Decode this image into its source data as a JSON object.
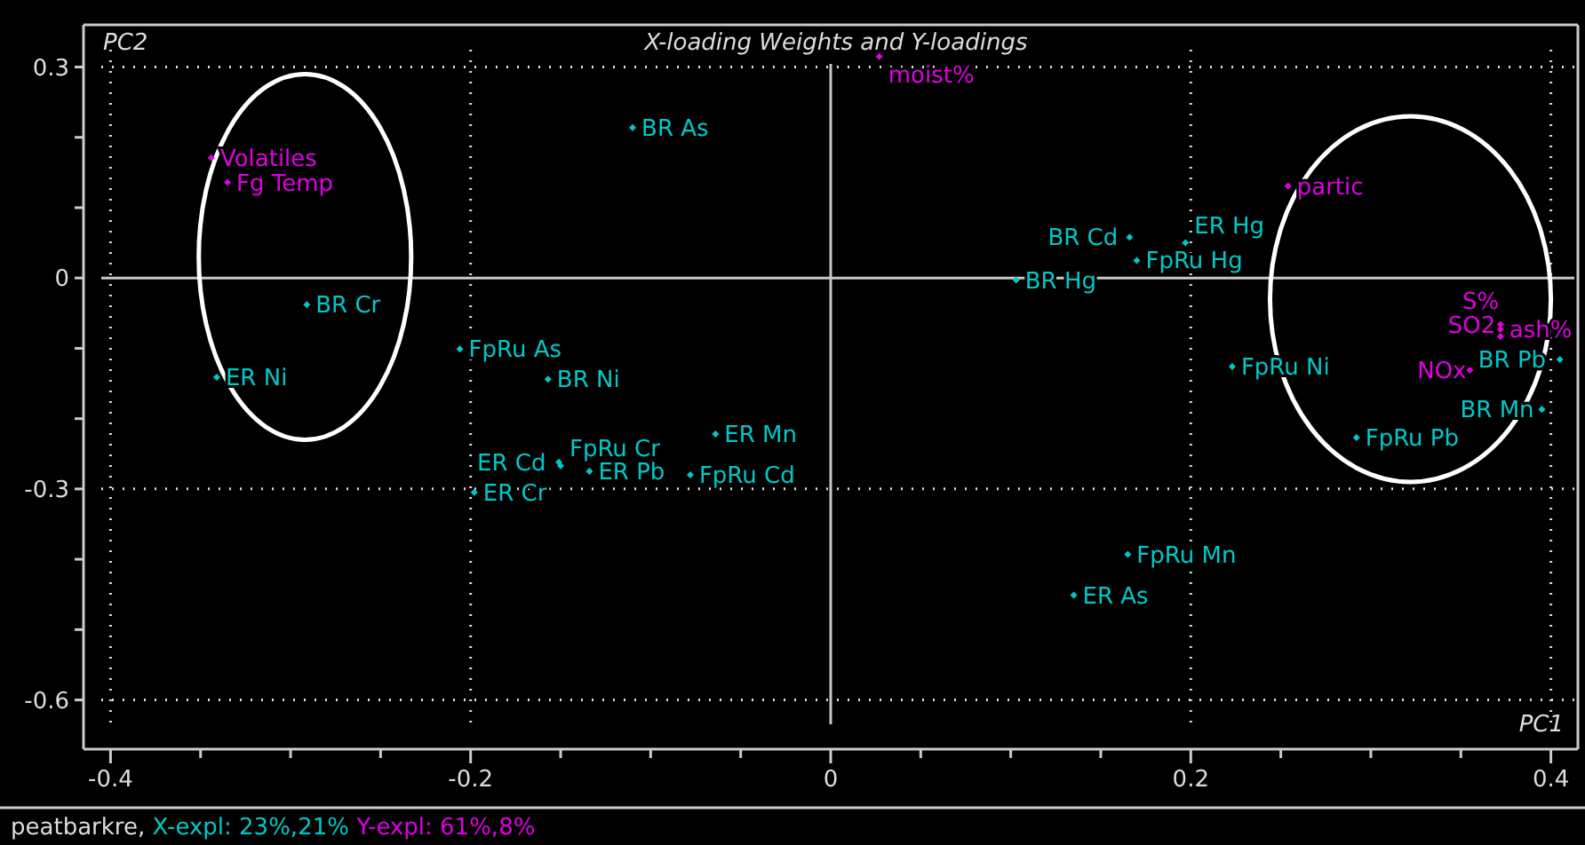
{
  "chart_data": {
    "type": "scatter",
    "title": "X-loading Weights and Y-loadings",
    "xlabel": "PC1",
    "ylabel": "PC2",
    "xlim": [
      -0.415,
      0.415
    ],
    "ylim": [
      -0.67,
      0.36
    ],
    "xticks": [
      -0.4,
      {
        "value": -0.35,
        "label": null
      },
      {
        "value": -0.3,
        "label": null
      },
      {
        "value": -0.25,
        "label": null
      },
      -0.2,
      {
        "value": -0.15,
        "label": null
      },
      {
        "value": -0.1,
        "label": null
      },
      {
        "value": -0.05,
        "label": null
      },
      0,
      {
        "value": 0.05,
        "label": null
      },
      {
        "value": 0.1,
        "label": null
      },
      {
        "value": 0.15,
        "label": null
      },
      0.2,
      {
        "value": 0.25,
        "label": null
      },
      {
        "value": 0.3,
        "label": null
      },
      {
        "value": 0.35,
        "label": null
      },
      0.4
    ],
    "yticks": [
      -0.6,
      {
        "value": -0.5,
        "label": null
      },
      {
        "value": -0.4,
        "label": null
      },
      -0.3,
      {
        "value": -0.2,
        "label": null
      },
      {
        "value": -0.1,
        "label": null
      },
      0,
      {
        "value": 0.1,
        "label": null
      },
      {
        "value": 0.2,
        "label": null
      },
      0.3
    ],
    "grid": true,
    "marker": "diamond",
    "series": [
      {
        "name": "X-expl: 23%,21%",
        "color": "#00c8c8",
        "x": [
          -0.11,
          -0.291,
          -0.341,
          -0.206,
          -0.157,
          -0.064,
          -0.151,
          -0.15,
          -0.134,
          -0.078,
          -0.198,
          0.165,
          0.135,
          0.103,
          0.166,
          0.17,
          0.197,
          0.223,
          0.405,
          0.395,
          0.292
        ],
        "values": [
          0.214,
          -0.038,
          -0.141,
          -0.101,
          -0.144,
          -0.222,
          -0.262,
          -0.267,
          -0.275,
          -0.28,
          -0.305,
          -0.393,
          -0.451,
          -0.003,
          0.058,
          0.025,
          0.05,
          -0.126,
          -0.116,
          -0.187,
          -0.227
        ],
        "value_labels": [
          "BR As",
          "BR Cr",
          "ER Ni",
          "FpRu As",
          "BR Ni",
          "ER Mn",
          "ER Cd",
          "FpRu Cr",
          "ER Pb",
          "FpRu Cd",
          "ER Cr",
          "FpRu Mn",
          "ER As",
          "BR Hg",
          "BR Cd",
          "FpRu Hg",
          "ER Hg",
          "FpRu Ni",
          "BR Pb",
          "BR Mn",
          "FpRu Pb"
        ]
      },
      {
        "name": "Y-expl: 61%,8%",
        "color": "#e000e0",
        "x": [
          -0.344,
          -0.335,
          0.027,
          0.254,
          0.372,
          0.372,
          0.372,
          0.355
        ],
        "values": [
          0.171,
          0.136,
          0.315,
          0.131,
          -0.073,
          -0.066,
          -0.083,
          -0.131
        ],
        "value_labels": [
          "Volatiles",
          "Fg Temp",
          "moist%",
          "partic",
          "ash%",
          "SO2",
          "S%",
          "NOx"
        ]
      }
    ],
    "annotations": [
      "peatbarkre,"
    ]
  }
}
